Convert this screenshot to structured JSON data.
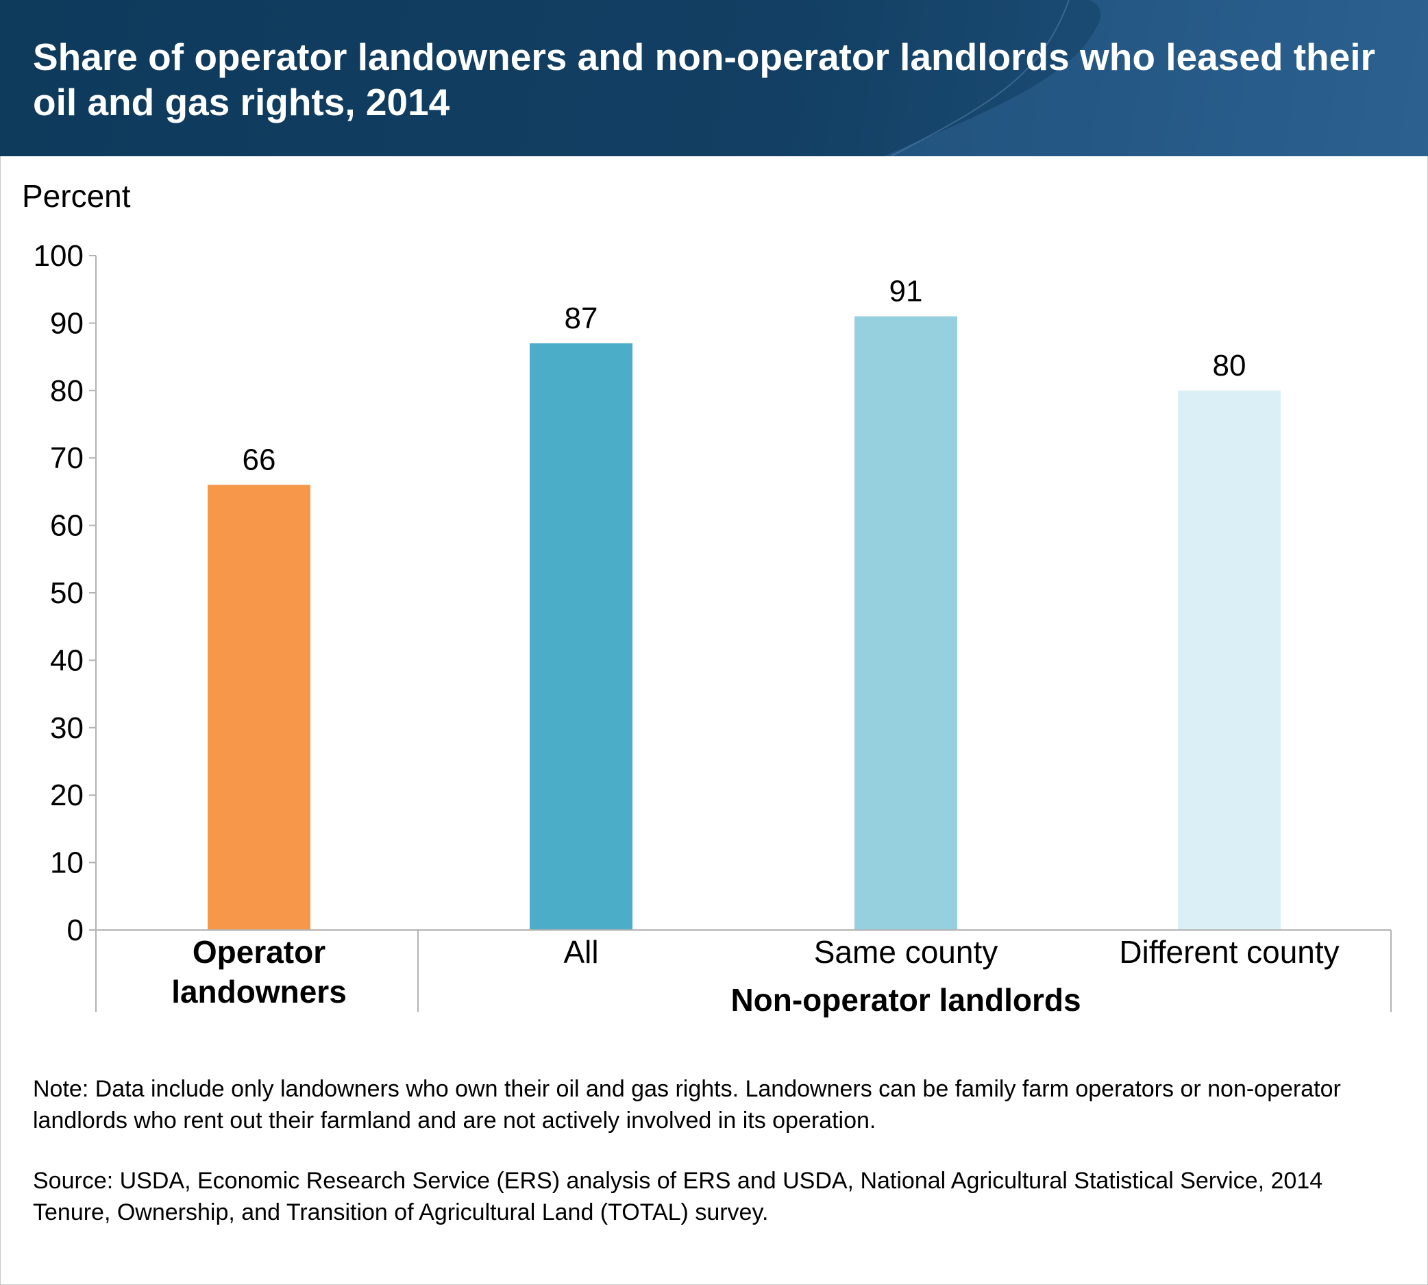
{
  "title": "Share of operator landowners and non-operator landlords who leased their oil and gas rights, 2014",
  "note": "Note: Data include only landowners who own their oil and gas rights. Landowners can be family farm operators or non-operator landlords who rent out their farmland and are not actively involved in its operation.",
  "source": "Source: USDA, Economic Research Service (ERS) analysis of ERS and USDA, National Agricultural Statistical Service, 2014 Tenure, Ownership, and Transition of Agricultural Land (TOTAL) survey.",
  "chart_data": {
    "type": "bar",
    "ylabel": "Percent",
    "ylim": [
      0,
      100
    ],
    "yticks": [
      0,
      10,
      20,
      30,
      40,
      50,
      60,
      70,
      80,
      90,
      100
    ],
    "grid": false,
    "categories": [
      "Operator landowners",
      "All",
      "Same county",
      "Different county"
    ],
    "values": [
      66,
      87,
      91,
      80
    ],
    "data_labels": [
      "66",
      "87",
      "91",
      "80"
    ],
    "colors": [
      "#F7974A",
      "#4BADC7",
      "#96CFDD",
      "#DAEFF6"
    ],
    "bold_categories": [
      true,
      false,
      false,
      false
    ],
    "group_label": "Non-operator landlords",
    "group_members": [
      "All",
      "Same county",
      "Different county"
    ]
  }
}
